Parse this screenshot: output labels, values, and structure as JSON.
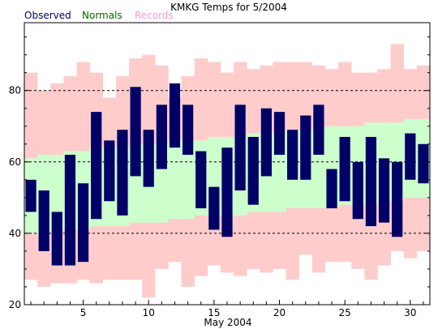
{
  "chart_data": {
    "type": "bar",
    "title": "KMKG Temps for 5/2004",
    "xlabel": "May 2004",
    "ylabel": "",
    "legend_position": "top-left",
    "grid": "dashed horizontal at labeled ticks",
    "xlim": [
      0.5,
      31.5
    ],
    "ylim": [
      20,
      99
    ],
    "y_ticks": [
      20,
      40,
      60,
      80
    ],
    "x_ticks": [
      5,
      10,
      15,
      20,
      25,
      30
    ],
    "days": [
      1,
      2,
      3,
      4,
      5,
      6,
      7,
      8,
      9,
      10,
      11,
      12,
      13,
      14,
      15,
      16,
      17,
      18,
      19,
      20,
      21,
      22,
      23,
      24,
      25,
      26,
      27,
      28,
      29,
      30,
      31
    ],
    "series": [
      {
        "name": "Observed",
        "color": "#000066",
        "high": [
          55,
          52,
          46,
          62,
          54,
          74,
          66,
          69,
          81,
          69,
          76,
          82,
          76,
          63,
          53,
          64,
          76,
          67,
          75,
          74,
          69,
          73,
          76,
          58,
          67,
          60,
          67,
          61,
          60,
          68,
          65
        ],
        "low": [
          46,
          35,
          31,
          31,
          32,
          44,
          49,
          45,
          56,
          53,
          58,
          64,
          62,
          47,
          41,
          39,
          52,
          48,
          56,
          62,
          55,
          55,
          62,
          47,
          49,
          44,
          42,
          43,
          39,
          55,
          54
        ]
      },
      {
        "name": "Normals",
        "color": "#ccffcc",
        "high": [
          61,
          62,
          62,
          63,
          63,
          64,
          64,
          64,
          65,
          65,
          65,
          66,
          66,
          66,
          67,
          67,
          67,
          68,
          68,
          68,
          69,
          69,
          69,
          70,
          70,
          70,
          71,
          71,
          71,
          72,
          72
        ],
        "low": [
          40,
          40,
          41,
          41,
          41,
          42,
          42,
          42,
          43,
          43,
          43,
          44,
          44,
          45,
          45,
          45,
          45,
          46,
          46,
          46,
          47,
          47,
          47,
          47,
          48,
          48,
          48,
          49,
          49,
          50,
          50
        ]
      },
      {
        "name": "Records",
        "color": "#ffcccc",
        "high": [
          85,
          80,
          82,
          84,
          88,
          85,
          78,
          84,
          89,
          90,
          87,
          78,
          84,
          89,
          88,
          85,
          88,
          86,
          87,
          88,
          88,
          88,
          87,
          86,
          88,
          85,
          85,
          86,
          93,
          86,
          87
        ],
        "low": [
          27,
          25,
          26,
          26,
          27,
          26,
          27,
          27,
          27,
          22,
          30,
          32,
          25,
          28,
          31,
          29,
          28,
          30,
          29,
          30,
          27,
          34,
          29,
          32,
          32,
          30,
          27,
          31,
          35,
          33,
          35
        ]
      }
    ]
  }
}
